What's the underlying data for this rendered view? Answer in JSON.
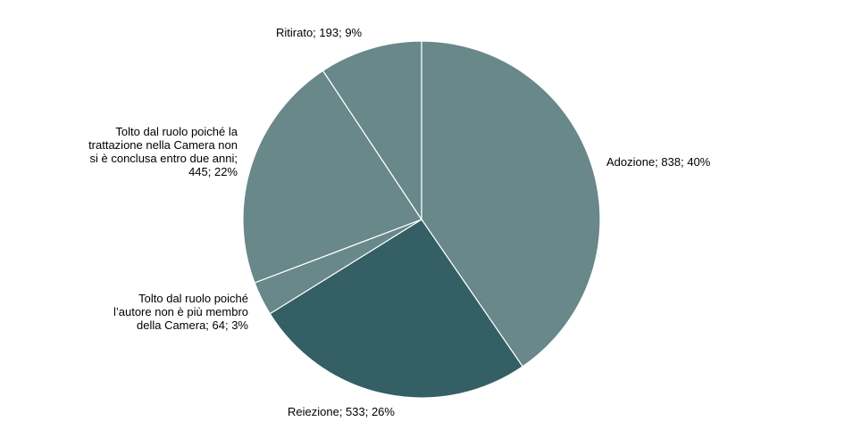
{
  "chart_data": {
    "type": "pie",
    "title": "",
    "slices": [
      {
        "name": "Adozione",
        "value": 838,
        "percent": "40%",
        "label": "Adozione; 838; 40%",
        "color": "#68888a"
      },
      {
        "name": "Reiezione",
        "value": 533,
        "percent": "26%",
        "label": "Reiezione; 533; 26%",
        "color": "#335f65"
      },
      {
        "name": "Tolto dal ruolo poiché l’autore non è più membro della Camera",
        "value": 64,
        "percent": "3%",
        "label": "Tolto dal ruolo poiché\nl’autore non è più membro\ndella Camera; 64; 3%",
        "color": "#68888a"
      },
      {
        "name": "Tolto dal ruolo poiché la trattazione nella Camera non si è conclusa entro due anni",
        "value": 445,
        "percent": "22%",
        "label": "Tolto dal ruolo poiché la\ntrattazione nella Camera non\nsi è conclusa entro due anni;\n445; 22%",
        "color": "#68888a"
      },
      {
        "name": "Ritirato",
        "value": 193,
        "percent": "9%",
        "label": "Ritirato; 193; 9%",
        "color": "#68888a"
      }
    ],
    "start_angle": "12 o'clock",
    "direction": "clockwise",
    "legend": "none"
  }
}
